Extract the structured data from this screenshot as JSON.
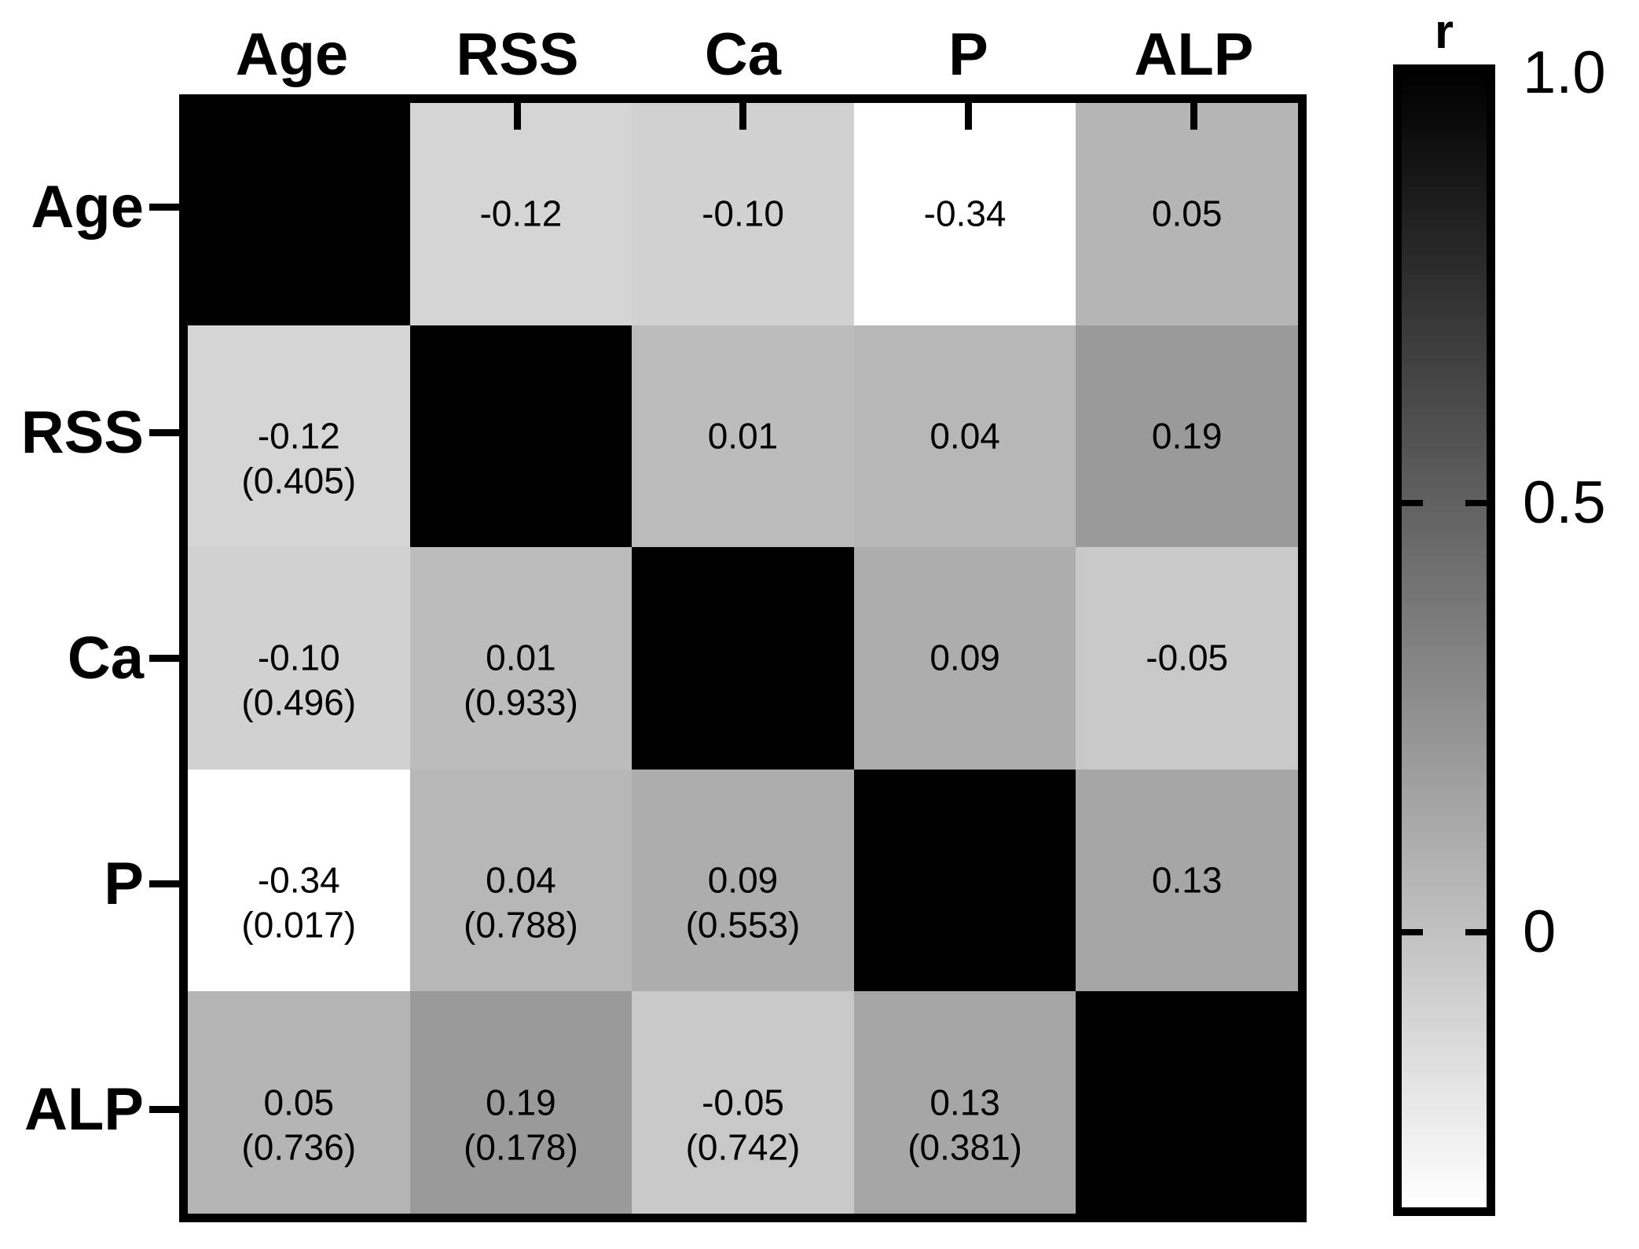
{
  "chart_data": {
    "type": "heatmap",
    "description": "Grayscale correlation matrix heatmap; upper triangle shows Pearson r, lower triangle shows r with p-value in parentheses, diagonal is r = 1 (black).",
    "variables": [
      "Age",
      "RSS",
      "Ca",
      "P",
      "ALP"
    ],
    "color_scale": {
      "high_value": 1.0,
      "low_value": -0.34,
      "high_color": "#000000",
      "low_color": "#ffffff"
    },
    "colorbar": {
      "title": "r",
      "tick_labels": [
        "1.0",
        "0.5",
        "0"
      ],
      "tick_values": [
        1.0,
        0.5,
        0
      ]
    },
    "rows": [
      {
        "name": "Age",
        "cells": [
          {
            "diagonal": true,
            "r": 1.0
          },
          {
            "r": -0.12,
            "r_label": "-0.12"
          },
          {
            "r": -0.1,
            "r_label": "-0.10"
          },
          {
            "r": -0.34,
            "r_label": "-0.34"
          },
          {
            "r": 0.05,
            "r_label": "0.05"
          }
        ]
      },
      {
        "name": "RSS",
        "cells": [
          {
            "r": -0.12,
            "r_label": "-0.12",
            "p_label": "(0.405)"
          },
          {
            "diagonal": true,
            "r": 1.0
          },
          {
            "r": 0.01,
            "r_label": "0.01"
          },
          {
            "r": 0.04,
            "r_label": "0.04"
          },
          {
            "r": 0.19,
            "r_label": "0.19"
          }
        ]
      },
      {
        "name": "Ca",
        "cells": [
          {
            "r": -0.1,
            "r_label": "-0.10",
            "p_label": "(0.496)"
          },
          {
            "r": 0.01,
            "r_label": "0.01",
            "p_label": "(0.933)"
          },
          {
            "diagonal": true,
            "r": 1.0
          },
          {
            "r": 0.09,
            "r_label": "0.09"
          },
          {
            "r": -0.05,
            "r_label": "-0.05"
          }
        ]
      },
      {
        "name": "P",
        "cells": [
          {
            "r": -0.34,
            "r_label": "-0.34",
            "p_label": "(0.017)"
          },
          {
            "r": 0.04,
            "r_label": "0.04",
            "p_label": "(0.788)"
          },
          {
            "r": 0.09,
            "r_label": "0.09",
            "p_label": "(0.553)"
          },
          {
            "diagonal": true,
            "r": 1.0
          },
          {
            "r": 0.13,
            "r_label": "0.13"
          }
        ]
      },
      {
        "name": "ALP",
        "cells": [
          {
            "r": 0.05,
            "r_label": "0.05",
            "p_label": "(0.736)"
          },
          {
            "r": 0.19,
            "r_label": "0.19",
            "p_label": "(0.178)"
          },
          {
            "r": -0.05,
            "r_label": "-0.05",
            "p_label": "(0.742)"
          },
          {
            "r": 0.13,
            "r_label": "0.13",
            "p_label": "(0.381)"
          },
          {
            "diagonal": true,
            "r": 1.0
          }
        ]
      }
    ]
  }
}
